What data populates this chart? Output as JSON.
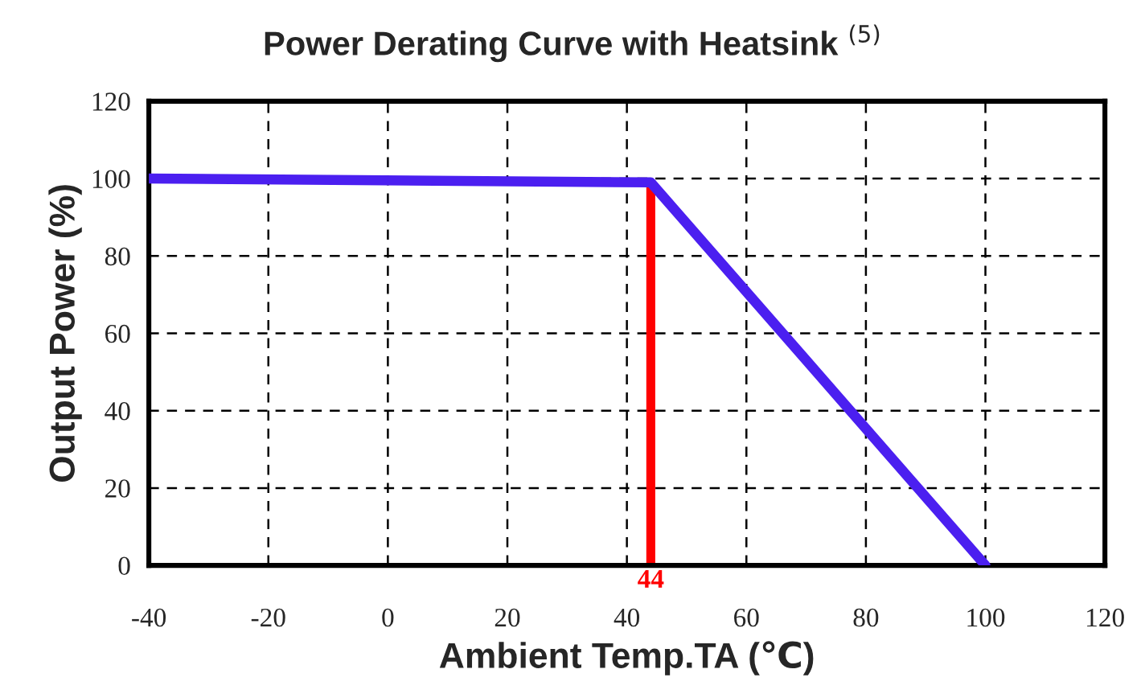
{
  "chart_data": {
    "type": "line",
    "title": "Power Derating Curve with Heatsink $^{(5)}$",
    "xlabel": "Ambient Temp.TA (℃)",
    "ylabel": "Output Power (%)",
    "x": [
      -40,
      44,
      100
    ],
    "series": [
      {
        "color": "#4b1ff0",
        "values": [
          100,
          99,
          0
        ]
      }
    ],
    "xlim": [
      -40,
      120
    ],
    "xticks": [
      -40,
      -20,
      0,
      20,
      40,
      60,
      80,
      100,
      120
    ],
    "ylim": [
      0,
      120
    ],
    "yticks": [
      0,
      20,
      40,
      60,
      80,
      100,
      120
    ],
    "ref_lines": [
      {
        "axis": "x",
        "value": 44,
        "label": "44",
        "color": "#ff0000",
        "line_style": "solid"
      }
    ],
    "grid": true,
    "line_style": "solid",
    "marker": "none",
    "legend": false
  }
}
